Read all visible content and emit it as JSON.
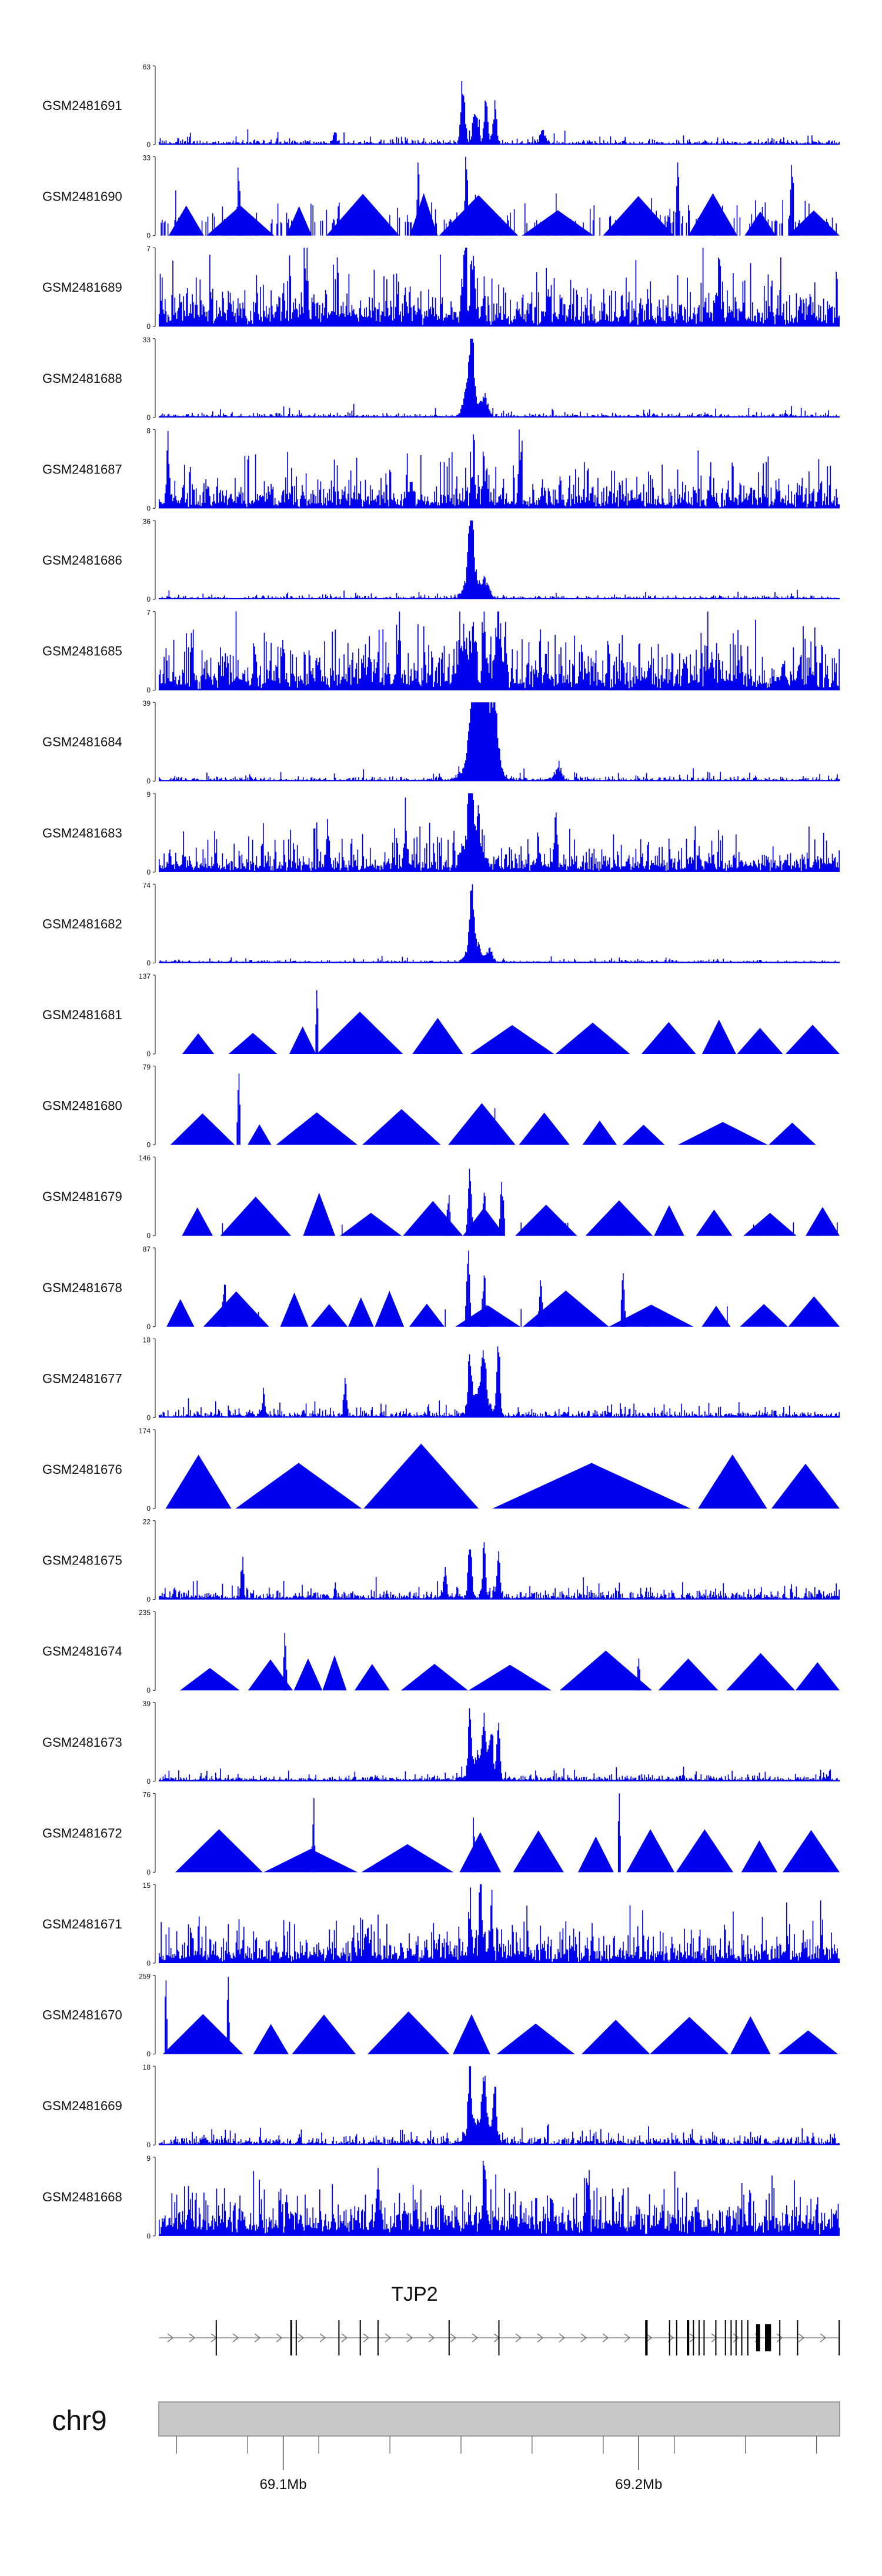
{
  "chart_data": {
    "type": "area",
    "title": "",
    "color": "#0000ee",
    "region": {
      "chromosome": "chr9",
      "xlim_mb": [
        69.065,
        69.2565
      ],
      "ticks": [
        {
          "value": 69.1,
          "label": "69.1Mb"
        },
        {
          "value": 69.2,
          "label": "69.2Mb"
        }
      ]
    },
    "gene": {
      "name": "TJP2",
      "strand": "+",
      "exons_mb": [
        [
          69.081,
          69.0811
        ],
        [
          69.102,
          69.1025
        ],
        [
          69.1035,
          69.1036
        ],
        [
          69.1155,
          69.1156
        ],
        [
          69.1215,
          69.1216
        ],
        [
          69.1265,
          69.1266
        ],
        [
          69.1465,
          69.1466
        ],
        [
          69.1605,
          69.1605
        ],
        [
          69.2018,
          69.2025
        ],
        [
          69.2085,
          69.2086
        ],
        [
          69.2105,
          69.2106
        ],
        [
          69.2135,
          69.2142
        ],
        [
          69.2152,
          69.2153
        ],
        [
          69.2168,
          69.2169
        ],
        [
          69.2182,
          69.2183
        ],
        [
          69.2215,
          69.2216
        ],
        [
          69.2242,
          69.2243
        ],
        [
          69.2258,
          69.2259
        ],
        [
          69.2272,
          69.2273
        ],
        [
          69.2288,
          69.2289
        ],
        [
          69.2305,
          69.2306
        ],
        [
          69.233,
          69.2341
        ],
        [
          69.2355,
          69.2372
        ],
        [
          69.2395,
          69.2396
        ],
        [
          69.2445,
          69.2446
        ],
        [
          69.2562,
          69.2563
        ]
      ]
    },
    "tracks": [
      {
        "name": "GSM2481691",
        "ymax": 63,
        "style": "dense",
        "base": 0.04,
        "noise": 0.08,
        "spike_rate": 0.12,
        "peaks": [
          [
            69.1505,
            1.0,
            0.6
          ],
          [
            69.154,
            0.5,
            0.8
          ],
          [
            69.157,
            0.6,
            0.6
          ],
          [
            69.1595,
            0.55,
            0.6
          ],
          [
            69.173,
            0.2,
            0.8
          ],
          [
            69.1145,
            0.15,
            0.5
          ]
        ]
      },
      {
        "name": "GSM2481690",
        "ymax": 33,
        "style": "triangles",
        "base": 0.25,
        "noise": 0.2,
        "spike_rate": 0.25,
        "peaks": [
          [
            69.0875,
            0.95,
            0.4
          ],
          [
            69.138,
            1.0,
            0.4
          ],
          [
            69.1515,
            0.85,
            0.5
          ],
          [
            69.211,
            0.9,
            0.4
          ],
          [
            69.243,
            0.9,
            0.4
          ]
        ]
      },
      {
        "name": "GSM2481689",
        "ymax": 7,
        "style": "dense",
        "base": 0.25,
        "noise": 0.35,
        "spike_rate": 0.5,
        "peaks": [
          [
            69.1535,
            1.0,
            0.5
          ],
          [
            69.151,
            0.7,
            0.6
          ],
          [
            69.1065,
            0.8,
            0.5
          ],
          [
            69.2225,
            0.8,
            0.5
          ]
        ]
      },
      {
        "name": "GSM2481688",
        "ymax": 33,
        "style": "dense",
        "base": 0.03,
        "noise": 0.06,
        "spike_rate": 0.15,
        "peaks": [
          [
            69.153,
            1.0,
            0.6
          ],
          [
            69.1525,
            0.55,
            1.6
          ],
          [
            69.1565,
            0.3,
            1.2
          ]
        ]
      },
      {
        "name": "GSM2481687",
        "ymax": 8,
        "style": "dense",
        "base": 0.18,
        "noise": 0.3,
        "spike_rate": 0.45,
        "peaks": [
          [
            69.1665,
            1.0,
            0.4
          ],
          [
            69.1535,
            0.7,
            0.5
          ],
          [
            69.0675,
            0.85,
            0.4
          ],
          [
            69.1565,
            0.6,
            0.5
          ]
        ]
      },
      {
        "name": "GSM2481686",
        "ymax": 36,
        "style": "dense",
        "base": 0.03,
        "noise": 0.05,
        "spike_rate": 0.12,
        "peaks": [
          [
            69.1528,
            1.0,
            0.6
          ],
          [
            69.153,
            0.55,
            1.8
          ],
          [
            69.157,
            0.25,
            1.2
          ]
        ]
      },
      {
        "name": "GSM2481685",
        "ymax": 7,
        "style": "dense",
        "base": 0.25,
        "noise": 0.35,
        "spike_rate": 0.55,
        "peaks": [
          [
            69.1565,
            1.0,
            0.5
          ],
          [
            69.1535,
            0.85,
            0.6
          ],
          [
            69.1505,
            0.75,
            1.5
          ],
          [
            69.1605,
            0.7,
            1.2
          ],
          [
            69.1325,
            0.7,
            0.5
          ]
        ]
      },
      {
        "name": "GSM2481684",
        "ymax": 39,
        "style": "dense",
        "base": 0.03,
        "noise": 0.06,
        "spike_rate": 0.12,
        "peaks": [
          [
            69.1535,
            1.0,
            1.2
          ],
          [
            69.1565,
            0.85,
            1.8
          ],
          [
            69.1595,
            0.8,
            1.2
          ],
          [
            69.1555,
            0.6,
            3.5
          ],
          [
            69.1775,
            0.2,
            1.0
          ]
        ]
      },
      {
        "name": "GSM2481683",
        "ymax": 9,
        "style": "dense",
        "base": 0.15,
        "noise": 0.25,
        "spike_rate": 0.4,
        "peaks": [
          [
            69.1525,
            1.0,
            0.5
          ],
          [
            69.1535,
            0.6,
            2.5
          ],
          [
            69.1345,
            0.55,
            0.5
          ],
          [
            69.1125,
            0.5,
            0.6
          ],
          [
            69.1765,
            0.5,
            0.5
          ]
        ]
      },
      {
        "name": "GSM2481682",
        "ymax": 74,
        "style": "dense",
        "base": 0.02,
        "noise": 0.04,
        "spike_rate": 0.1,
        "peaks": [
          [
            69.153,
            1.0,
            0.5
          ],
          [
            69.1535,
            0.4,
            1.8
          ],
          [
            69.158,
            0.2,
            1.0
          ]
        ]
      },
      {
        "name": "GSM2481681",
        "ymax": 137,
        "style": "triangles",
        "base": 0.45,
        "noise": 0.0,
        "spike_rate": 0.0,
        "peaks": [
          [
            69.1095,
            0.95,
            0.3
          ]
        ]
      },
      {
        "name": "GSM2481680",
        "ymax": 79,
        "style": "triangles",
        "base": 0.45,
        "noise": 0.0,
        "spike_rate": 0.0,
        "peaks": [
          [
            69.0875,
            1.0,
            0.3
          ],
          [
            69.1595,
            0.5,
            0.3
          ]
        ]
      },
      {
        "name": "GSM2481679",
        "ymax": 146,
        "style": "triangles",
        "base": 0.2,
        "noise": 0.08,
        "spike_rate": 0.12,
        "peaks": [
          [
            69.1525,
            0.85,
            0.5
          ],
          [
            69.1615,
            0.75,
            0.5
          ],
          [
            69.1565,
            0.55,
            0.5
          ],
          [
            69.1465,
            0.5,
            0.5
          ]
        ]
      },
      {
        "name": "GSM2481678",
        "ymax": 87,
        "style": "triangles",
        "base": 0.3,
        "noise": 0.08,
        "spike_rate": 0.1,
        "peaks": [
          [
            69.152,
            0.95,
            0.5
          ],
          [
            69.1565,
            0.7,
            0.5
          ],
          [
            69.1725,
            0.7,
            0.4
          ],
          [
            69.1955,
            0.75,
            0.4
          ],
          [
            69.0835,
            0.6,
            0.4
          ]
        ]
      },
      {
        "name": "GSM2481677",
        "ymax": 18,
        "style": "dense",
        "base": 0.05,
        "noise": 0.1,
        "spike_rate": 0.18,
        "peaks": [
          [
            69.1605,
            1.0,
            0.5
          ],
          [
            69.1525,
            0.85,
            0.5
          ],
          [
            69.1565,
            0.75,
            0.6
          ],
          [
            69.1555,
            0.4,
            2.5
          ],
          [
            69.1175,
            0.55,
            0.4
          ],
          [
            69.0945,
            0.3,
            0.5
          ]
        ]
      },
      {
        "name": "GSM2481676",
        "ymax": 174,
        "style": "triangles",
        "base": 0.9,
        "noise": 0.0,
        "spike_rate": 0.0,
        "peaks": []
      },
      {
        "name": "GSM2481675",
        "ymax": 22,
        "style": "dense",
        "base": 0.06,
        "noise": 0.12,
        "spike_rate": 0.2,
        "peaks": [
          [
            69.1525,
            1.0,
            0.5
          ],
          [
            69.1565,
            0.8,
            0.5
          ],
          [
            69.1605,
            0.65,
            0.5
          ],
          [
            69.0885,
            0.6,
            0.4
          ],
          [
            69.1455,
            0.45,
            0.5
          ]
        ]
      },
      {
        "name": "GSM2481674",
        "ymax": 235,
        "style": "triangles",
        "base": 0.35,
        "noise": 0.0,
        "spike_rate": 0.0,
        "peaks": [
          [
            69.1005,
            1.0,
            0.3
          ],
          [
            69.2,
            0.55,
            0.3
          ]
        ]
      },
      {
        "name": "GSM2481673",
        "ymax": 39,
        "style": "dense",
        "base": 0.05,
        "noise": 0.08,
        "spike_rate": 0.15,
        "peaks": [
          [
            69.1525,
            1.0,
            0.5
          ],
          [
            69.1605,
            0.85,
            0.5
          ],
          [
            69.1565,
            0.75,
            0.5
          ],
          [
            69.1585,
            0.6,
            0.6
          ],
          [
            69.1555,
            0.35,
            2.5
          ]
        ]
      },
      {
        "name": "GSM2481672",
        "ymax": 76,
        "style": "triangles",
        "base": 0.45,
        "noise": 0.02,
        "spike_rate": 0.05,
        "peaks": [
          [
            69.1085,
            1.0,
            0.3
          ],
          [
            69.1945,
            1.0,
            0.3
          ],
          [
            69.1535,
            0.6,
            0.3
          ]
        ]
      },
      {
        "name": "GSM2481671",
        "ymax": 15,
        "style": "dense",
        "base": 0.2,
        "noise": 0.3,
        "spike_rate": 0.45,
        "peaks": [
          [
            69.1555,
            1.0,
            0.5
          ],
          [
            69.1585,
            0.8,
            0.5
          ],
          [
            69.1525,
            0.6,
            0.5
          ],
          [
            69.1235,
            0.45,
            0.5
          ]
        ]
      },
      {
        "name": "GSM2481670",
        "ymax": 259,
        "style": "triangles",
        "base": 0.45,
        "noise": 0.0,
        "spike_rate": 0.0,
        "peaks": [
          [
            69.067,
            0.95,
            0.3
          ],
          [
            69.0845,
            0.95,
            0.3
          ]
        ]
      },
      {
        "name": "GSM2481669",
        "ymax": 18,
        "style": "dense",
        "base": 0.06,
        "noise": 0.12,
        "spike_rate": 0.2,
        "peaks": [
          [
            69.1525,
            1.0,
            0.5
          ],
          [
            69.1595,
            0.95,
            0.5
          ],
          [
            69.1565,
            0.7,
            0.6
          ],
          [
            69.1555,
            0.35,
            3.0
          ]
        ]
      },
      {
        "name": "GSM2481668",
        "ymax": 9,
        "style": "dense",
        "base": 0.35,
        "noise": 0.3,
        "spike_rate": 0.6,
        "peaks": [
          [
            69.1565,
            0.8,
            0.5
          ],
          [
            69.1855,
            0.75,
            0.5
          ],
          [
            69.1265,
            0.7,
            0.5
          ]
        ]
      }
    ]
  }
}
